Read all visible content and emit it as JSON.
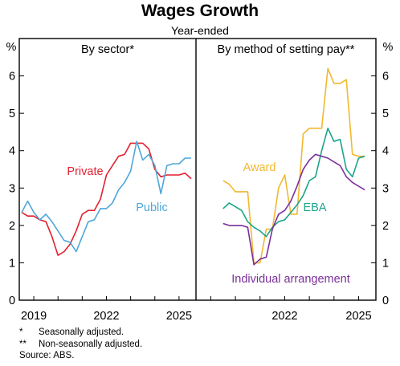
{
  "title": "Wages Growth",
  "subtitle": "Year-ended",
  "notes": [
    {
      "mark": "*",
      "text": "Seasonally adjusted."
    },
    {
      "mark": "**",
      "text": "Non-seasonally adjusted."
    }
  ],
  "source": "Source: ABS.",
  "chart_data": [
    {
      "type": "line",
      "panel_title": "By sector*",
      "y_unit": "%",
      "ylim": [
        0,
        7
      ],
      "yticks": [
        0,
        1,
        2,
        3,
        4,
        5,
        6
      ],
      "xlim": [
        2018.4,
        2025.7
      ],
      "xticks": [
        "2019",
        "2022",
        "2025"
      ],
      "xtick_values": [
        2019,
        2022,
        2025
      ],
      "grid": false,
      "series": [
        {
          "name": "Private",
          "color": "#e4202f",
          "x": [
            2018.5,
            2018.75,
            2019.0,
            2019.25,
            2019.5,
            2019.75,
            2020.0,
            2020.25,
            2020.5,
            2020.75,
            2021.0,
            2021.25,
            2021.5,
            2021.75,
            2022.0,
            2022.25,
            2022.5,
            2022.75,
            2023.0,
            2023.25,
            2023.5,
            2023.75,
            2024.0,
            2024.25,
            2024.5,
            2024.75,
            2025.0,
            2025.25,
            2025.5
          ],
          "y": [
            2.35,
            2.25,
            2.25,
            2.15,
            2.1,
            1.7,
            1.2,
            1.3,
            1.5,
            1.85,
            2.3,
            2.4,
            2.4,
            2.7,
            3.35,
            3.6,
            3.85,
            3.9,
            4.2,
            4.2,
            4.2,
            4.05,
            3.5,
            3.3,
            3.35,
            3.35,
            3.35,
            3.4,
            3.25
          ]
        },
        {
          "name": "Public",
          "color": "#4fa7d9",
          "x": [
            2018.5,
            2018.75,
            2019.0,
            2019.25,
            2019.5,
            2019.75,
            2020.0,
            2020.25,
            2020.5,
            2020.75,
            2021.0,
            2021.25,
            2021.5,
            2021.75,
            2022.0,
            2022.25,
            2022.5,
            2022.75,
            2023.0,
            2023.25,
            2023.5,
            2023.75,
            2024.0,
            2024.25,
            2024.5,
            2024.75,
            2025.0,
            2025.25,
            2025.5
          ],
          "y": [
            2.35,
            2.65,
            2.35,
            2.15,
            2.3,
            2.1,
            1.85,
            1.6,
            1.55,
            1.3,
            1.7,
            2.1,
            2.15,
            2.45,
            2.45,
            2.6,
            2.95,
            3.15,
            3.45,
            4.25,
            3.75,
            3.9,
            3.6,
            2.85,
            3.6,
            3.65,
            3.65,
            3.8,
            3.8
          ]
        }
      ]
    },
    {
      "type": "line",
      "panel_title": "By method of setting pay**",
      "y_unit": "%",
      "ylim": [
        0,
        7
      ],
      "yticks": [
        0,
        1,
        2,
        3,
        4,
        5,
        6
      ],
      "xlim": [
        2018.4,
        2025.7
      ],
      "xticks": [
        "2022",
        "2025"
      ],
      "xtick_values": [
        2022,
        2025
      ],
      "grid": false,
      "series": [
        {
          "name": "Award",
          "color": "#f2b830",
          "x": [
            2019.5,
            2019.75,
            2020.0,
            2020.25,
            2020.5,
            2020.75,
            2021.0,
            2021.25,
            2021.5,
            2021.75,
            2022.0,
            2022.25,
            2022.5,
            2022.75,
            2023.0,
            2023.25,
            2023.5,
            2023.75,
            2024.0,
            2024.25,
            2024.5,
            2024.75,
            2025.0,
            2025.25
          ],
          "y": [
            3.2,
            3.1,
            2.9,
            2.9,
            2.9,
            1.0,
            1.0,
            1.9,
            1.9,
            3.0,
            3.35,
            2.3,
            2.3,
            4.45,
            4.6,
            4.6,
            4.6,
            6.2,
            5.8,
            5.8,
            5.9,
            3.9,
            3.85,
            3.85
          ]
        },
        {
          "name": "EBA",
          "color": "#1aa58a",
          "x": [
            2019.5,
            2019.75,
            2020.0,
            2020.25,
            2020.5,
            2020.75,
            2021.0,
            2021.25,
            2021.5,
            2021.75,
            2022.0,
            2022.25,
            2022.5,
            2022.75,
            2023.0,
            2023.25,
            2023.5,
            2023.75,
            2024.0,
            2024.25,
            2024.5,
            2024.75,
            2025.0,
            2025.25
          ],
          "y": [
            2.45,
            2.6,
            2.5,
            2.4,
            2.1,
            1.95,
            1.85,
            1.7,
            1.95,
            2.1,
            2.15,
            2.35,
            2.55,
            2.8,
            3.2,
            3.3,
            4.0,
            4.6,
            4.25,
            4.3,
            3.5,
            3.3,
            3.8,
            3.85
          ]
        },
        {
          "name": "Individual arrangement",
          "color": "#7a2f9a",
          "x": [
            2019.5,
            2019.75,
            2020.0,
            2020.25,
            2020.5,
            2020.75,
            2021.0,
            2021.25,
            2021.5,
            2021.75,
            2022.0,
            2022.25,
            2022.5,
            2022.75,
            2023.0,
            2023.25,
            2023.5,
            2023.75,
            2024.0,
            2024.25,
            2024.5,
            2024.75,
            2025.0,
            2025.25
          ],
          "y": [
            2.05,
            2.0,
            2.0,
            2.0,
            1.95,
            0.95,
            1.1,
            1.15,
            1.9,
            2.3,
            2.4,
            2.65,
            3.05,
            3.5,
            3.75,
            3.9,
            3.85,
            3.8,
            3.7,
            3.6,
            3.3,
            3.15,
            3.05,
            2.95
          ]
        }
      ]
    }
  ]
}
